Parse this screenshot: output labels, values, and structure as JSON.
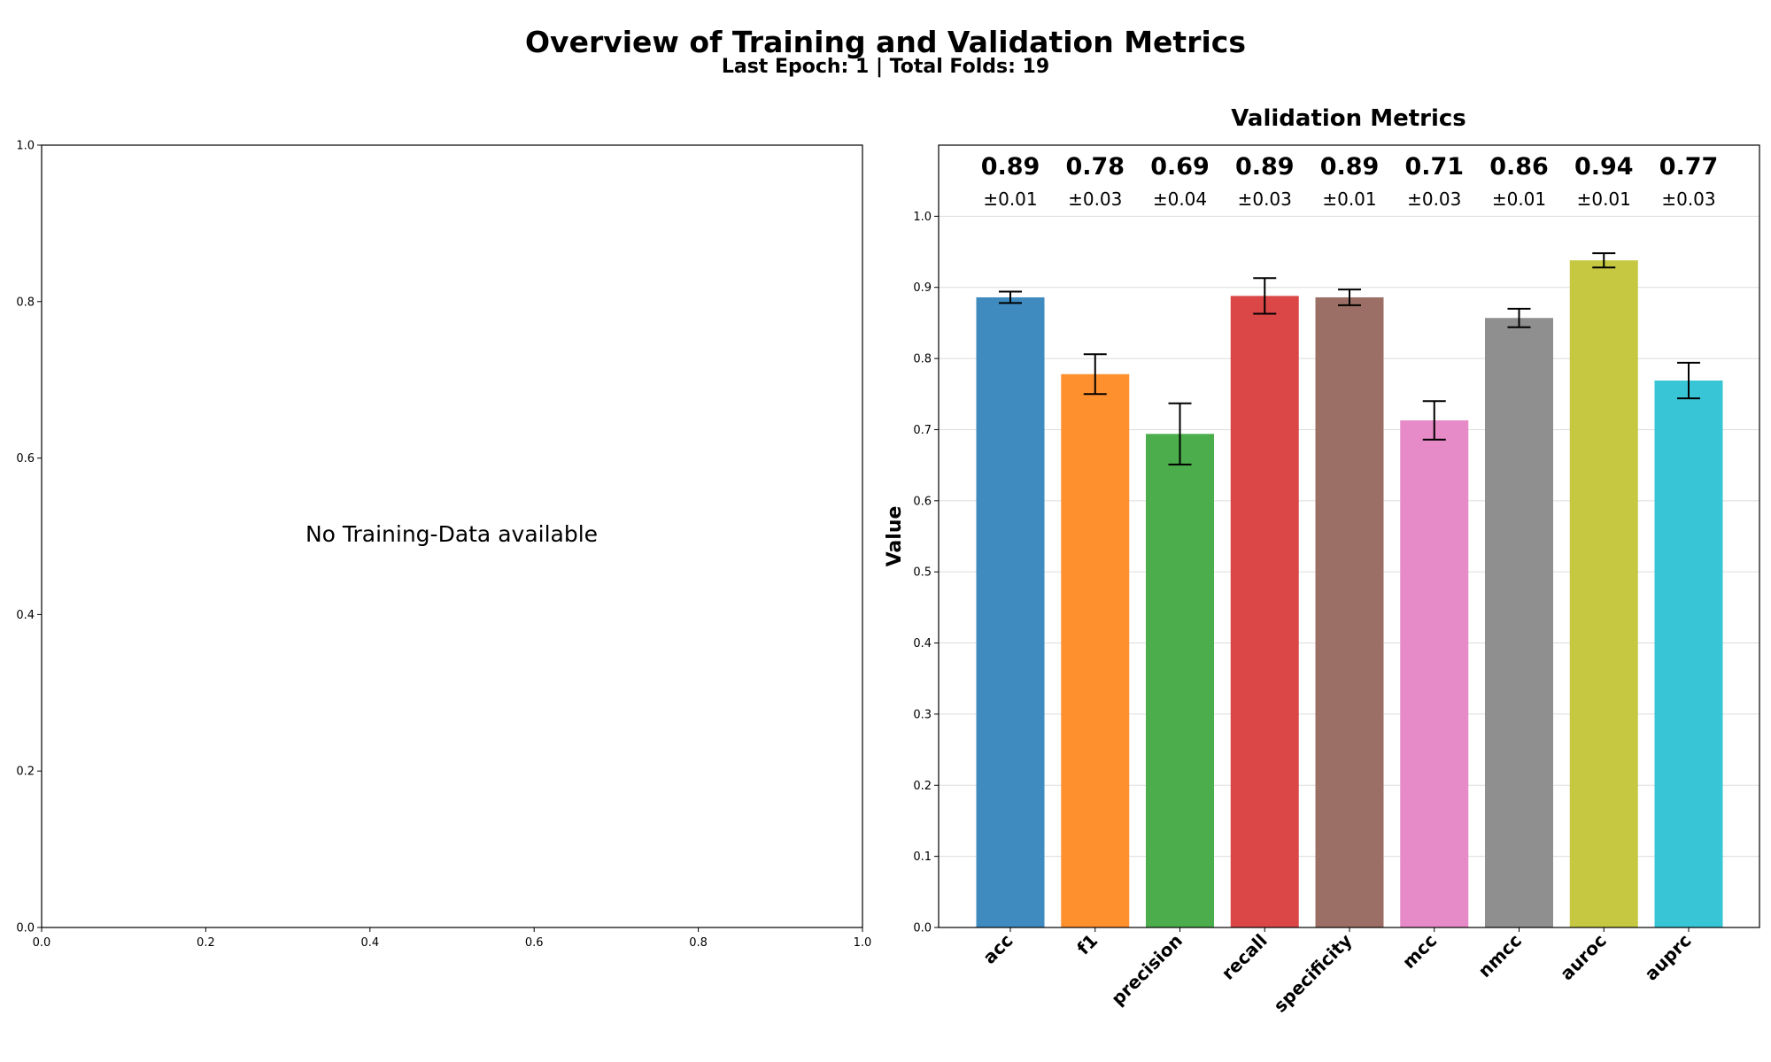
{
  "header": {
    "title": "Overview of Training and Validation Metrics",
    "subtitle": "Last Epoch: 1 | Total Folds: 19"
  },
  "chart_data": [
    {
      "type": "line",
      "title": "",
      "xlim": [
        0.0,
        1.0
      ],
      "ylim": [
        0.0,
        1.0
      ],
      "xticks": [
        "0.0",
        "0.2",
        "0.4",
        "0.6",
        "0.8",
        "1.0"
      ],
      "yticks": [
        "0.0",
        "0.2",
        "0.4",
        "0.6",
        "0.8",
        "1.0"
      ],
      "grid": false,
      "series": [],
      "annotation": "No Training-Data available"
    },
    {
      "type": "bar",
      "title": "Validation Metrics",
      "ylabel": "Value",
      "ylim": [
        0.0,
        1.1
      ],
      "yticks": [
        "0.0",
        "0.1",
        "0.2",
        "0.3",
        "0.4",
        "0.5",
        "0.6",
        "0.7",
        "0.8",
        "0.9",
        "1.0"
      ],
      "grid": true,
      "categories": [
        "acc",
        "f1",
        "precision",
        "recall",
        "specificity",
        "mcc",
        "nmcc",
        "auroc",
        "auprc"
      ],
      "values": [
        0.886,
        0.778,
        0.694,
        0.888,
        0.886,
        0.713,
        0.857,
        0.938,
        0.769
      ],
      "errors": [
        0.008,
        0.028,
        0.043,
        0.025,
        0.011,
        0.027,
        0.013,
        0.01,
        0.025
      ],
      "value_labels": [
        "0.89",
        "0.78",
        "0.69",
        "0.89",
        "0.89",
        "0.71",
        "0.86",
        "0.94",
        "0.77"
      ],
      "error_labels": [
        "±0.01",
        "±0.03",
        "±0.04",
        "±0.03",
        "±0.01",
        "±0.03",
        "±0.01",
        "±0.01",
        "±0.03"
      ],
      "colors": [
        "#3f8bbf",
        "#ff902e",
        "#4cad4c",
        "#db4647",
        "#9c6f66",
        "#e78ac8",
        "#8f8f8f",
        "#c5c840",
        "#38c5d6"
      ]
    }
  ]
}
